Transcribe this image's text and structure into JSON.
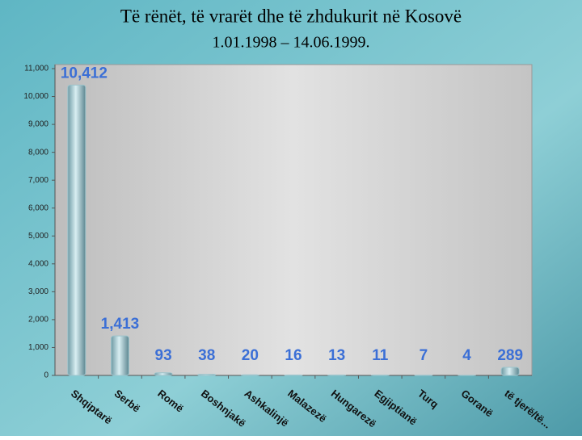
{
  "chart_data": {
    "type": "bar",
    "title": "Të rënët, të vrarët dhe të zhdukurit në Kosovë",
    "subtitle": "1.01.1998 – 14.06.1999.",
    "categories": [
      "Shqiptarë",
      "Serbë",
      "Romë",
      "Boshnjakë",
      "Ashkalinjë",
      "Malazezë",
      "Hungarezë",
      "Egjiptianë",
      "Turq",
      "Goranë",
      "të tjerë/të..."
    ],
    "values": [
      10412,
      1413,
      93,
      38,
      20,
      16,
      13,
      11,
      7,
      4,
      289
    ],
    "value_labels": [
      "10,412",
      "1,413",
      "93",
      "38",
      "20",
      "16",
      "13",
      "11",
      "7",
      "4",
      "289"
    ],
    "color": "#9cc4cc",
    "ylim": [
      0,
      11000
    ],
    "yticks": [
      0,
      {
        "value": 1000,
        "label": "1,000"
      },
      {
        "value": 2000,
        "label": "2,000"
      },
      {
        "value": 3000,
        "label": "3,000"
      },
      {
        "value": 4000,
        "label": "4,000"
      },
      {
        "value": 5000,
        "label": "5,000"
      },
      {
        "value": 6000,
        "label": "6,000"
      },
      {
        "value": 7000,
        "label": "7,000"
      },
      {
        "value": 8000,
        "label": "8,000"
      },
      {
        "value": 9000,
        "label": "9,000"
      },
      {
        "value": 10000,
        "label": "10,000"
      },
      {
        "value": 11000,
        "label": "11,000"
      }
    ],
    "grid": false
  }
}
